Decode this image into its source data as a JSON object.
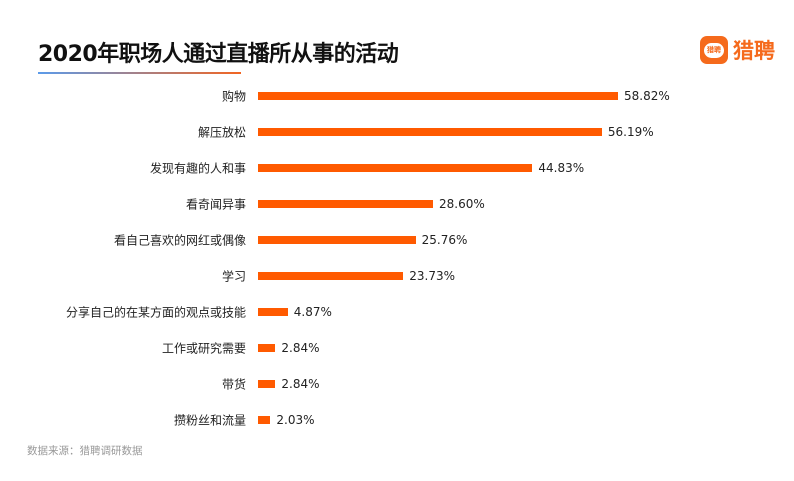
{
  "logo": {
    "badge_text": "猎聘",
    "brand_text": "猎聘"
  },
  "source": "数据来源：猎聘调研数据",
  "colors": {
    "bar": "#ff5a00",
    "brand": "#f56a1c"
  },
  "chart_data": {
    "type": "bar",
    "orientation": "horizontal",
    "title": "2020年职场人通过直播所从事的活动",
    "categories": [
      "购物",
      "解压放松",
      "发现有趣的人和事",
      "看奇闻异事",
      "看自己喜欢的网红或偶像",
      "学习",
      "分享自己的在某方面的观点或技能",
      "工作或研究需要",
      "带货",
      "攒粉丝和流量"
    ],
    "values": [
      58.82,
      56.19,
      44.83,
      28.6,
      25.76,
      23.73,
      4.87,
      2.84,
      2.84,
      2.03
    ],
    "labels": [
      "58.82%",
      "56.19%",
      "44.83%",
      "28.60%",
      "25.76%",
      "23.73%",
      "4.87%",
      "2.84%",
      "2.84%",
      "2.03%"
    ],
    "unit": "%",
    "xlim": [
      0,
      58.82
    ],
    "grid": false
  }
}
